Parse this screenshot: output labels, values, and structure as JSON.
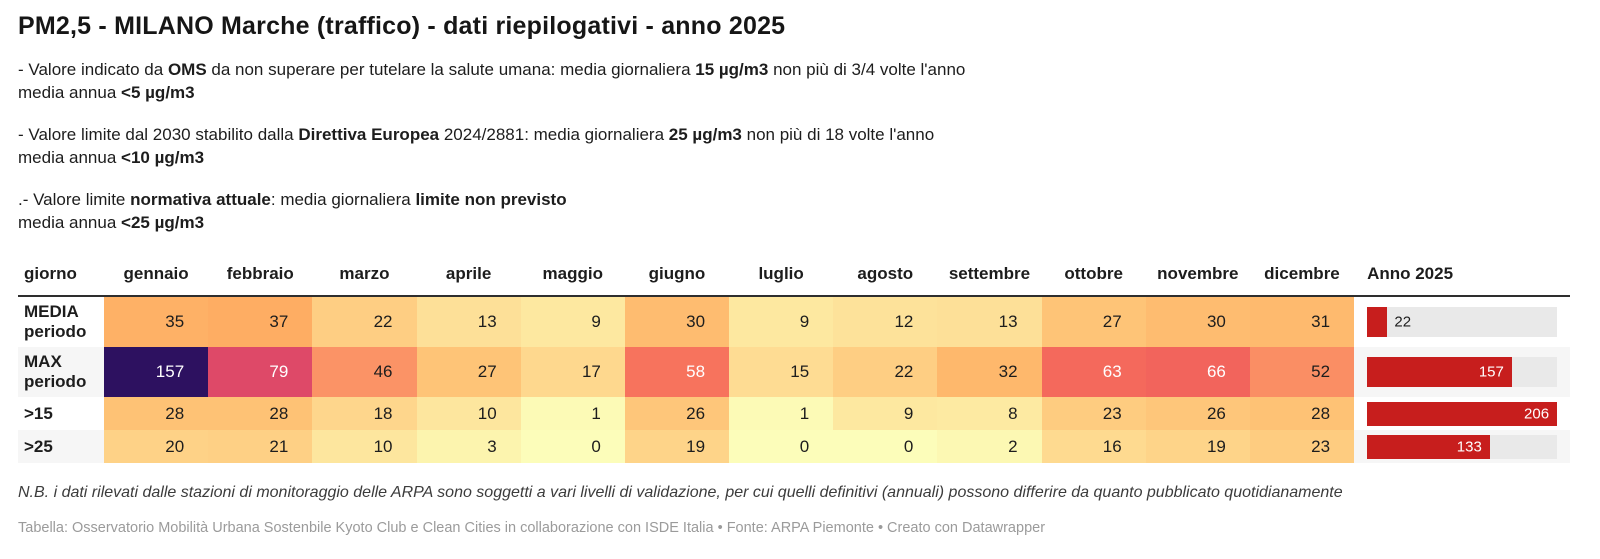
{
  "title": "PM2,5 - MILANO Marche (traffico) - dati riepilogativi - anno 2025",
  "notes": [
    [
      [
        {
          "t": "- Valore indicato da ",
          "b": false
        },
        {
          "t": "OMS",
          "b": true
        },
        {
          "t": " da non superare per tutelare la salute umana: media giornaliera ",
          "b": false
        },
        {
          "t": "15 µg/m3",
          "b": true
        },
        {
          "t": " non più di 3/4 volte l'anno",
          "b": false
        }
      ],
      [
        {
          "t": "media annua ",
          "b": false
        },
        {
          "t": "<5 µg/m3",
          "b": true
        }
      ]
    ],
    [
      [
        {
          "t": "- Valore limite dal 2030 stabilito dalla ",
          "b": false
        },
        {
          "t": "Direttiva Europea",
          "b": true
        },
        {
          "t": " 2024/2881: media giornaliera ",
          "b": false
        },
        {
          "t": "25 µg/m3",
          "b": true
        },
        {
          "t": " non più di 18 volte l'anno",
          "b": false
        }
      ],
      [
        {
          "t": "media annua ",
          "b": false
        },
        {
          "t": "<10 µg/m3",
          "b": true
        }
      ]
    ],
    [
      [
        {
          "t": ".- Valore limite ",
          "b": false
        },
        {
          "t": "normativa attuale",
          "b": true
        },
        {
          "t": ": media giornaliera ",
          "b": false
        },
        {
          "t": "limite non previsto",
          "b": true
        }
      ],
      [
        {
          "t": "media annua ",
          "b": false
        },
        {
          "t": "<25 µg/m3",
          "b": true
        }
      ]
    ]
  ],
  "table": {
    "corner": "giorno",
    "months": [
      "gennaio",
      "febbraio",
      "marzo",
      "aprile",
      "maggio",
      "giugno",
      "luglio",
      "agosto",
      "settembre",
      "ottobre",
      "novembre",
      "dicembre"
    ],
    "year_col": "Anno 2025",
    "rows": [
      {
        "label1": "MEDIA",
        "label2": "periodo",
        "cells": [
          {
            "v": "35",
            "bg": "#FEB166",
            "fg": "#1d1d1d"
          },
          {
            "v": "37",
            "bg": "#FEAD63",
            "fg": "#1d1d1d"
          },
          {
            "v": "22",
            "bg": "#FECE83",
            "fg": "#1d1d1d"
          },
          {
            "v": "13",
            "bg": "#FDE098",
            "fg": "#1d1d1d"
          },
          {
            "v": "9",
            "bg": "#FDE8A0",
            "fg": "#1d1d1d"
          },
          {
            "v": "30",
            "bg": "#FEBC70",
            "fg": "#1d1d1d"
          },
          {
            "v": "9",
            "bg": "#FDE8A0",
            "fg": "#1d1d1d"
          },
          {
            "v": "12",
            "bg": "#FDE29A",
            "fg": "#1d1d1d"
          },
          {
            "v": "13",
            "bg": "#FDE098",
            "fg": "#1d1d1d"
          },
          {
            "v": "27",
            "bg": "#FEC477",
            "fg": "#1d1d1d"
          },
          {
            "v": "30",
            "bg": "#FEBC70",
            "fg": "#1d1d1d"
          },
          {
            "v": "31",
            "bg": "#FEBA6E",
            "fg": "#1d1d1d"
          }
        ],
        "bar": {
          "value": "22",
          "pct": 10.7,
          "inside": false
        }
      },
      {
        "label1": "MAX",
        "label2": "periodo",
        "cells": [
          {
            "v": "157",
            "bg": "#2D1160",
            "fg": "#ffffff"
          },
          {
            "v": "79",
            "bg": "#DE4968",
            "fg": "#ffffff"
          },
          {
            "v": "46",
            "bg": "#FB9366",
            "fg": "#1d1d1d"
          },
          {
            "v": "27",
            "bg": "#FEC477",
            "fg": "#1d1d1d"
          },
          {
            "v": "17",
            "bg": "#FED88E",
            "fg": "#1d1d1d"
          },
          {
            "v": "58",
            "bg": "#F7735D",
            "fg": "#ffffff"
          },
          {
            "v": "15",
            "bg": "#FEDC93",
            "fg": "#1d1d1d"
          },
          {
            "v": "22",
            "bg": "#FECE83",
            "fg": "#1d1d1d"
          },
          {
            "v": "32",
            "bg": "#FEB86C",
            "fg": "#1d1d1d"
          },
          {
            "v": "63",
            "bg": "#F4695C",
            "fg": "#ffffff"
          },
          {
            "v": "66",
            "bg": "#F2645C",
            "fg": "#ffffff"
          },
          {
            "v": "52",
            "bg": "#FA8E64",
            "fg": "#1d1d1d"
          }
        ],
        "bar": {
          "value": "157",
          "pct": 76.2,
          "inside": true
        }
      },
      {
        "label1": ">15",
        "label2": "",
        "cells": [
          {
            "v": "28",
            "bg": "#FEC275",
            "fg": "#1d1d1d"
          },
          {
            "v": "28",
            "bg": "#FEC275",
            "fg": "#1d1d1d"
          },
          {
            "v": "18",
            "bg": "#FED68C",
            "fg": "#1d1d1d"
          },
          {
            "v": "10",
            "bg": "#FDE69E",
            "fg": "#1d1d1d"
          },
          {
            "v": "1",
            "bg": "#FCFAB6",
            "fg": "#1d1d1d"
          },
          {
            "v": "26",
            "bg": "#FEC67A",
            "fg": "#1d1d1d"
          },
          {
            "v": "1",
            "bg": "#FCFAB6",
            "fg": "#1d1d1d"
          },
          {
            "v": "9",
            "bg": "#FDE8A0",
            "fg": "#1d1d1d"
          },
          {
            "v": "8",
            "bg": "#FDEAA2",
            "fg": "#1d1d1d"
          },
          {
            "v": "23",
            "bg": "#FECC80",
            "fg": "#1d1d1d"
          },
          {
            "v": "26",
            "bg": "#FEC67A",
            "fg": "#1d1d1d"
          },
          {
            "v": "28",
            "bg": "#FEC275",
            "fg": "#1d1d1d"
          }
        ],
        "bar": {
          "value": "206",
          "pct": 100,
          "inside": true
        }
      },
      {
        "label1": ">25",
        "label2": "",
        "cells": [
          {
            "v": "20",
            "bg": "#FED287",
            "fg": "#1d1d1d"
          },
          {
            "v": "21",
            "bg": "#FED085",
            "fg": "#1d1d1d"
          },
          {
            "v": "10",
            "bg": "#FDE69E",
            "fg": "#1d1d1d"
          },
          {
            "v": "3",
            "bg": "#FCF4AE",
            "fg": "#1d1d1d"
          },
          {
            "v": "0",
            "bg": "#FCFDBA",
            "fg": "#1d1d1d"
          },
          {
            "v": "19",
            "bg": "#FED489",
            "fg": "#1d1d1d"
          },
          {
            "v": "0",
            "bg": "#FCFDBA",
            "fg": "#1d1d1d"
          },
          {
            "v": "0",
            "bg": "#FCFDBA",
            "fg": "#1d1d1d"
          },
          {
            "v": "2",
            "bg": "#FCF8B3",
            "fg": "#1d1d1d"
          },
          {
            "v": "16",
            "bg": "#FEDA90",
            "fg": "#1d1d1d"
          },
          {
            "v": "19",
            "bg": "#FED489",
            "fg": "#1d1d1d"
          },
          {
            "v": "23",
            "bg": "#FECC80",
            "fg": "#1d1d1d"
          }
        ],
        "bar": {
          "value": "133",
          "pct": 64.6,
          "inside": true
        }
      }
    ]
  },
  "footnote": "N.B. i dati rilevati dalle stazioni di monitoraggio delle ARPA sono soggetti a vari livelli di validazione, per cui quelli definitivi (annuali) possono differire da quanto pubblicato quotidianamente",
  "attribution": "Tabella: Osservatorio Mobilità Urbana Sostenbile Kyoto Club e Clean Cities in collaborazione con ISDE Italia • Fonte: ARPA Piemonte • Creato con Datawrapper",
  "colors": {
    "bar_fill": "#C71E1D",
    "bar_track": "#E9E9E9",
    "header_rule": "#2E2E2E",
    "heatmap_low": "#FCFDBA",
    "heatmap_high": "#2D1160"
  },
  "chart_data": {
    "type": "table",
    "title": "PM2,5 - MILANO Marche (traffico) - dati riepilogativi - anno 2025",
    "columns": [
      "giorno",
      "gennaio",
      "febbraio",
      "marzo",
      "aprile",
      "maggio",
      "giugno",
      "luglio",
      "agosto",
      "settembre",
      "ottobre",
      "novembre",
      "dicembre",
      "Anno 2025"
    ],
    "rows": [
      {
        "label": "MEDIA periodo",
        "monthly": [
          35,
          37,
          22,
          13,
          9,
          30,
          9,
          12,
          13,
          27,
          30,
          31
        ],
        "anno_2025": 22
      },
      {
        "label": "MAX periodo",
        "monthly": [
          157,
          79,
          46,
          27,
          17,
          58,
          15,
          22,
          32,
          63,
          66,
          52
        ],
        "anno_2025": 157
      },
      {
        "label": ">15",
        "monthly": [
          28,
          28,
          18,
          10,
          1,
          26,
          1,
          9,
          8,
          23,
          26,
          28
        ],
        "anno_2025": 206
      },
      {
        "label": ">25",
        "monthly": [
          20,
          21,
          10,
          3,
          0,
          19,
          0,
          0,
          2,
          16,
          19,
          23
        ],
        "anno_2025": 133
      }
    ],
    "cell_shading": "heatmap: pale yellow (low) -> orange -> red -> dark purple (high)",
    "anno_bar_type": "bar",
    "anno_bar_max": 206
  }
}
